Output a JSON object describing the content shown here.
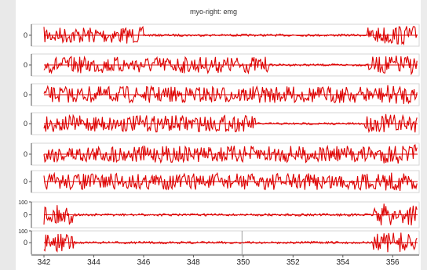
{
  "title": "myo-right: emg",
  "colors": {
    "signal": "#dd0000",
    "axis": "#555555",
    "grid": "#d6d6d6"
  },
  "channels": [
    {
      "ticks": [
        "0"
      ],
      "quiet": [
        [
          346,
          355
        ]
      ]
    },
    {
      "ticks": [
        "0"
      ],
      "quiet": [
        [
          351,
          355
        ]
      ]
    },
    {
      "ticks": [
        "0"
      ],
      "quiet": []
    },
    {
      "ticks": [
        "0"
      ],
      "quiet": [
        [
          350.5,
          354.8
        ]
      ]
    },
    {
      "ticks": [
        "0"
      ],
      "quiet": []
    },
    {
      "ticks": [
        "0"
      ],
      "quiet": []
    },
    {
      "ticks": [
        "100",
        "0"
      ],
      "quiet": [
        [
          343.2,
          355.2
        ]
      ]
    },
    {
      "ticks": [
        "100",
        "0"
      ],
      "quiet": [
        [
          343.2,
          355.2
        ]
      ]
    }
  ],
  "chart_data": {
    "type": "line",
    "title": "myo-right: emg",
    "x_ticks": [
      "342",
      "344",
      "346",
      "348",
      "350",
      "352",
      "354",
      "356"
    ],
    "xlim": [
      342,
      357
    ]
  }
}
